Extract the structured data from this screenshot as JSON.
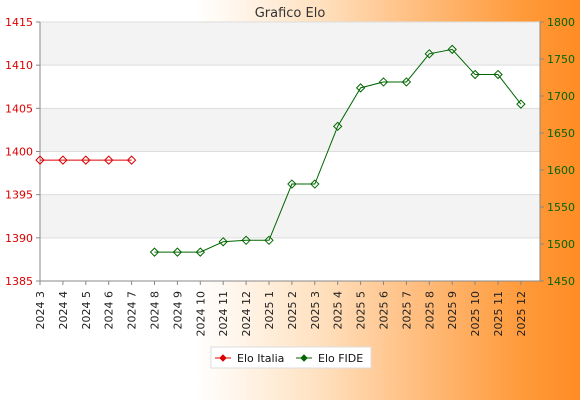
{
  "chart_data": {
    "type": "line",
    "title": "Grafico Elo",
    "categories": [
      "2024 3",
      "2024 4",
      "2024 5",
      "2024 6",
      "2024 7",
      "2024 8",
      "2024 9",
      "2024 10",
      "2024 11",
      "2024 12",
      "2025 1",
      "2025 2",
      "2025 3",
      "2025 4",
      "2025 5",
      "2025 6",
      "2025 7",
      "2025 8",
      "2025 9",
      "2025 10",
      "2025 11",
      "2025 12"
    ],
    "y_left": {
      "ylim": [
        1385,
        1415
      ],
      "ticks": [
        1385,
        1390,
        1395,
        1400,
        1405,
        1410,
        1415
      ],
      "color": "#dd0000"
    },
    "y_right": {
      "ylim": [
        1450,
        1800
      ],
      "ticks": [
        1450,
        1500,
        1550,
        1600,
        1650,
        1700,
        1750,
        1800
      ],
      "color": "#006600"
    },
    "series": [
      {
        "name": "Elo Italia",
        "axis": "left",
        "color": "#dd0000",
        "values": [
          1399,
          1399,
          1399,
          1399,
          1399,
          null,
          null,
          null,
          null,
          null,
          null,
          null,
          null,
          null,
          null,
          null,
          null,
          null,
          null,
          null,
          null,
          null
        ]
      },
      {
        "name": "Elo FIDE",
        "axis": "right",
        "color": "#006600",
        "values": [
          null,
          null,
          null,
          null,
          null,
          1489,
          1489,
          1489,
          1503,
          1505,
          1505,
          1581,
          1581,
          1659,
          1711,
          1719,
          1719,
          1757,
          1763,
          1729,
          1729,
          1689
        ]
      }
    ],
    "grid": true,
    "legend_position": "bottom-center"
  }
}
